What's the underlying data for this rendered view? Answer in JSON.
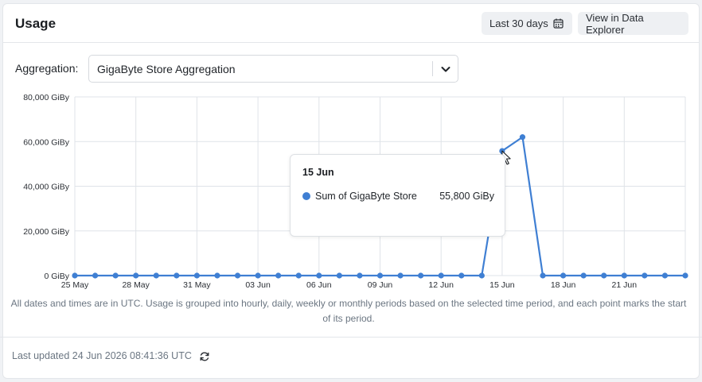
{
  "header": {
    "title": "Usage",
    "range_label": "Last 30 days",
    "explorer_label": "View in Data Explorer"
  },
  "aggregation": {
    "label": "Aggregation:",
    "selected": "GigaByte Store Aggregation"
  },
  "chart_data": {
    "type": "line",
    "x": [
      "25 May",
      "26 May",
      "27 May",
      "28 May",
      "29 May",
      "30 May",
      "31 May",
      "01 Jun",
      "02 Jun",
      "03 Jun",
      "04 Jun",
      "05 Jun",
      "06 Jun",
      "07 Jun",
      "08 Jun",
      "09 Jun",
      "10 Jun",
      "11 Jun",
      "12 Jun",
      "13 Jun",
      "14 Jun",
      "15 Jun",
      "16 Jun",
      "17 Jun",
      "18 Jun",
      "19 Jun",
      "20 Jun",
      "21 Jun",
      "22 Jun",
      "23 Jun",
      "24 Jun"
    ],
    "x_tick_labels": [
      "25 May",
      "28 May",
      "31 May",
      "03 Jun",
      "06 Jun",
      "09 Jun",
      "12 Jun",
      "15 Jun",
      "18 Jun",
      "21 Jun"
    ],
    "series": [
      {
        "name": "Sum of GigaByte Store",
        "color": "#3f7fd3",
        "values": [
          0,
          0,
          0,
          0,
          0,
          0,
          0,
          0,
          0,
          0,
          0,
          0,
          0,
          0,
          0,
          0,
          0,
          0,
          0,
          0,
          0,
          55800,
          62000,
          0,
          0,
          0,
          0,
          0,
          0,
          0,
          0
        ]
      }
    ],
    "y_tick_labels": [
      "0 GiBy",
      "20,000 GiBy",
      "40,000 GiBy",
      "60,000 GiBy",
      "80,000 GiBy"
    ],
    "ylim": [
      0,
      80000
    ],
    "grid": true
  },
  "tooltip": {
    "date": "15 Jun",
    "series": "Sum of GigaByte Store",
    "value": "55,800 GiBy"
  },
  "note": "All dates and times are in UTC. Usage is grouped into hourly, daily, weekly or monthly periods based on the selected time period, and each point marks the start of its period.",
  "footer": {
    "updated": "Last updated 24 Jun 2026 08:41:36 UTC"
  }
}
